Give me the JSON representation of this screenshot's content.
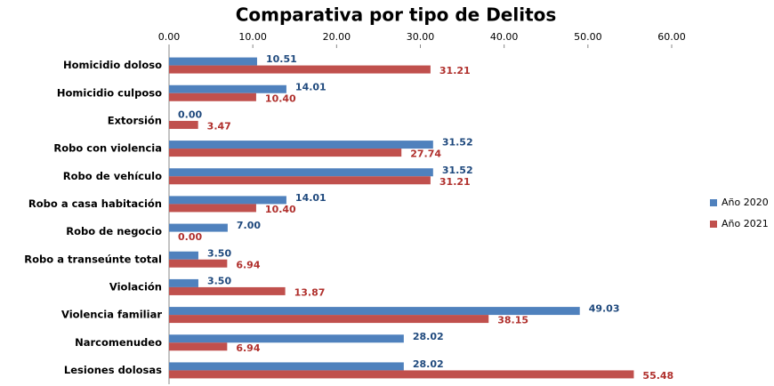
{
  "chart_data": {
    "type": "hbar",
    "title": "Comparativa por tipo de Delitos",
    "categories": [
      "Homicidio doloso",
      "Homicidio culposo",
      "Extorsión",
      "Robo con violencia",
      "Robo de vehículo",
      "Robo a casa habitación",
      "Robo de negocio",
      "Robo a transeúnte total",
      "Violación",
      "Violencia familiar",
      "Narcomenudeo",
      "Lesiones dolosas"
    ],
    "series": [
      {
        "name": "Año 2020",
        "color": "#4f81bd",
        "label_color": "#1f497d",
        "values": [
          10.51,
          14.01,
          0,
          31.52,
          31.52,
          14.01,
          7,
          3.5,
          3.5,
          49.03,
          28.02,
          28.02
        ],
        "value_labels": [
          "10.51",
          "14.01",
          "0.00",
          "31.52",
          "31.52",
          "14.01",
          "7.00",
          "3.50",
          "3.50",
          "49.03",
          "28.02",
          "28.02"
        ]
      },
      {
        "name": "Año 2021",
        "color": "#c0504d",
        "label_color": "#b0302d",
        "values": [
          31.21,
          10.4,
          3.47,
          27.74,
          31.21,
          10.4,
          0,
          6.94,
          13.87,
          38.15,
          6.94,
          55.48
        ],
        "value_labels": [
          "31.21",
          "10.40",
          "3.47",
          "27.74",
          "31.21",
          "10.40",
          "0.00",
          "6.94",
          "13.87",
          "38.15",
          "6.94",
          "55.48"
        ]
      }
    ],
    "xlim": [
      0,
      60
    ],
    "xticks": [
      {
        "value": 0,
        "label": "0.00"
      },
      {
        "value": 10,
        "label": "10.00"
      },
      {
        "value": 20,
        "label": "20.00"
      },
      {
        "value": 30,
        "label": "30.00"
      },
      {
        "value": 40,
        "label": "40.00"
      },
      {
        "value": 50,
        "label": "50.00"
      },
      {
        "value": 60,
        "label": "60.00"
      }
    ],
    "grid": false,
    "legend": "right"
  }
}
